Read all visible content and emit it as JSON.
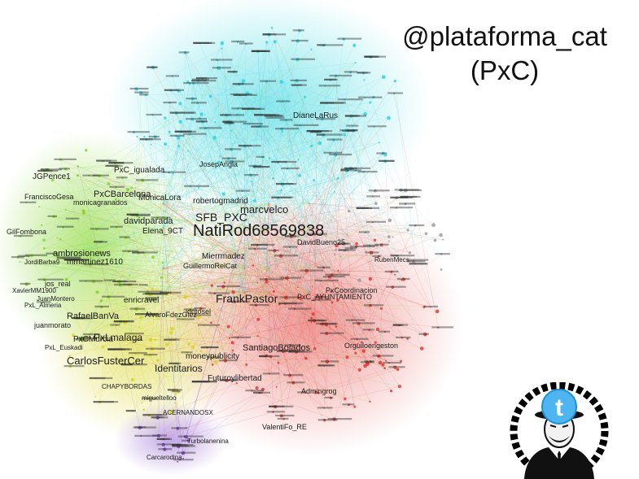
{
  "header": {
    "title_line1": "@plataforma_cat",
    "title_line2": "(PxC)"
  },
  "graph": {
    "cluster_colors": {
      "cyan": "#29d3dd",
      "red": "#e0322b",
      "green": "#7ed321",
      "yellow": "#d8d21a",
      "purple": "#7a3cc8",
      "grey": "#9a9a9a"
    },
    "labels": [
      {
        "text": "NatiRod68569838",
        "cluster": "cyan"
      },
      {
        "text": "SFB_PXC",
        "cluster": "cyan"
      },
      {
        "text": "marcvelco",
        "cluster": "cyan"
      },
      {
        "text": "FrankPastor",
        "cluster": "red"
      },
      {
        "text": "SantiagoBojados",
        "cluster": "red"
      },
      {
        "text": "Identitarios",
        "cluster": "yellow"
      },
      {
        "text": "PxCBarcelona",
        "cluster": "green"
      },
      {
        "text": "davidparada",
        "cluster": "green"
      },
      {
        "text": "PxLmalaga",
        "cluster": "yellow"
      },
      {
        "text": "CarlosFusterCer",
        "cluster": "yellow"
      },
      {
        "text": "ambrosionews",
        "cluster": "green"
      },
      {
        "text": "mmartinez1610",
        "cluster": "green"
      },
      {
        "text": "Elena_9CT",
        "cluster": "green"
      },
      {
        "text": "enricravel",
        "cluster": "green"
      },
      {
        "text": "moneypublicity",
        "cluster": "red"
      },
      {
        "text": "Futuroylibertad",
        "cluster": "red"
      },
      {
        "text": "robertogmadrid",
        "cluster": "cyan"
      },
      {
        "text": "Mierrmadez",
        "cluster": "red"
      },
      {
        "text": "RafaelBanVa",
        "cluster": "yellow"
      },
      {
        "text": "PxCMurcia",
        "cluster": "yellow"
      },
      {
        "text": "juanmorato",
        "cluster": "yellow"
      },
      {
        "text": "MonicaLora",
        "cluster": "green"
      },
      {
        "text": "GilFombona",
        "cluster": "green"
      },
      {
        "text": "JGPence1",
        "cluster": "green"
      },
      {
        "text": "FranciscoGesa",
        "cluster": "green"
      },
      {
        "text": "monicagranados",
        "cluster": "green"
      },
      {
        "text": "jdotosel",
        "cluster": "red"
      },
      {
        "text": "AlvaroFdezGlez",
        "cluster": "red"
      },
      {
        "text": "GuillermoRelCat",
        "cluster": "red"
      },
      {
        "text": "Orguiloengeston",
        "cluster": "red"
      },
      {
        "text": "DavidBueno25",
        "cluster": "grey"
      },
      {
        "text": "RubenMecs",
        "cluster": "grey"
      },
      {
        "text": "PxCoordinacion",
        "cluster": "red"
      },
      {
        "text": "JosepAngla",
        "cluster": "cyan"
      },
      {
        "text": "DianeLaRus",
        "cluster": "cyan"
      },
      {
        "text": "PxC_igualada",
        "cluster": "cyan"
      },
      {
        "text": "migueltelloo",
        "cluster": "yellow"
      },
      {
        "text": "CHAPYBORDAS",
        "cluster": "yellow"
      },
      {
        "text": "PxL_Euskadi",
        "cluster": "yellow"
      },
      {
        "text": "PxL_Almeria",
        "cluster": "yellow"
      },
      {
        "text": "XavierMM1900",
        "cluster": "green"
      },
      {
        "text": "jos_real",
        "cluster": "green"
      },
      {
        "text": "JordiBarba9",
        "cluster": "green"
      },
      {
        "text": "JuanMontero",
        "cluster": "yellow"
      },
      {
        "text": "ACERNANDOSX",
        "cluster": "purple"
      },
      {
        "text": "Turbolanenina",
        "cluster": "purple"
      },
      {
        "text": "ValentiFo_RE",
        "cluster": "red"
      },
      {
        "text": "Admingrog",
        "cluster": "red"
      },
      {
        "text": "Carcarodina",
        "cluster": "purple"
      },
      {
        "text": "PxC_AYUNTAMIENTO",
        "cluster": "red"
      }
    ]
  },
  "logo": {
    "icon": "anonymous-twitter-icon"
  }
}
